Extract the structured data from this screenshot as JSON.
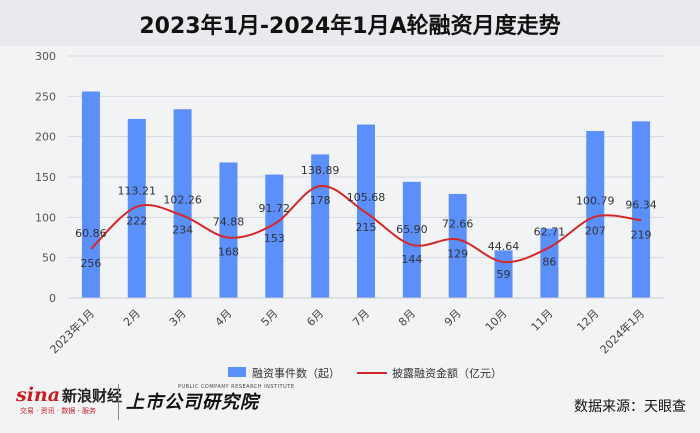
{
  "chart_data": {
    "type": "bar",
    "title": "2023年1月-2024年1月A轮融资月度走势",
    "categories": [
      "2023年1月",
      "2月",
      "3月",
      "4月",
      "5月",
      "6月",
      "7月",
      "8月",
      "9月",
      "10月",
      "11月",
      "12月",
      "2024年1月"
    ],
    "ylim": [
      0,
      300
    ],
    "yticks": [
      0,
      50,
      100,
      150,
      200,
      250,
      300
    ],
    "grid": true,
    "legend_position": "bottom",
    "series": [
      {
        "name": "融资事件数（起）",
        "type": "bar",
        "color": "#5b8ff9",
        "values": [
          256,
          222,
          234,
          168,
          153,
          178,
          215,
          144,
          129,
          59,
          86,
          207,
          219
        ]
      },
      {
        "name": "披露融资金额（亿元）",
        "type": "line",
        "smooth": true,
        "color": "#d62728",
        "values": [
          60.86,
          113.21,
          102.26,
          74.88,
          91.72,
          138.89,
          105.68,
          65.9,
          72.66,
          44.64,
          62.71,
          100.79,
          96.34
        ],
        "labels": [
          "60.86",
          "113.21",
          "102.26",
          "74.88",
          "91.72",
          "138.89",
          "105.68",
          "65.90",
          "72.66",
          "44.64",
          "62.71",
          "100.79",
          "96.34"
        ]
      }
    ]
  },
  "footer": {
    "sina_logo": "sina",
    "sina_name": "新浪财经",
    "sina_sub": "交易 · 资讯 · 数据 · 服务",
    "institute_cn": "上市公司研究院",
    "institute_en": "PUBLIC COMPANY RESEARCH INSTITUTE",
    "source": "数据来源：天眼查"
  }
}
